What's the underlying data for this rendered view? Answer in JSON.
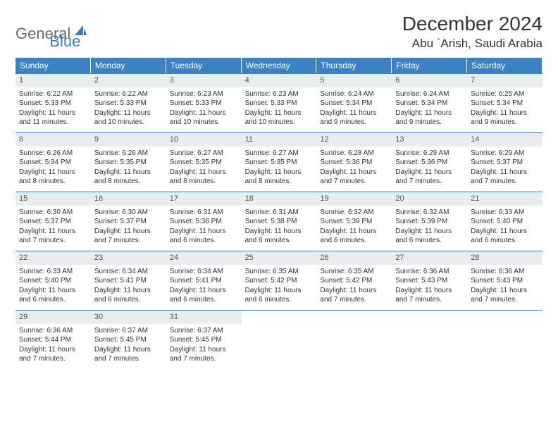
{
  "brand": {
    "part1": "General",
    "part2": "Blue"
  },
  "title": "December 2024",
  "location": "Abu `Arish, Saudi Arabia",
  "colors": {
    "header_bg": "#3b82c4",
    "header_text": "#ffffff",
    "cell_border": "#3b82c4",
    "daynum_bg": "#e9edf0",
    "text": "#333333",
    "brand_grey": "#6a6a6a",
    "brand_blue": "#3b7fbf",
    "page_bg": "#ffffff"
  },
  "typography": {
    "title_fontsize": 28,
    "location_fontsize": 17,
    "dayheader_fontsize": 12,
    "daynum_fontsize": 11,
    "body_fontsize": 10
  },
  "layout": {
    "columns": 7,
    "rows": 5,
    "cell_min_height": 84
  },
  "day_names": [
    "Sunday",
    "Monday",
    "Tuesday",
    "Wednesday",
    "Thursday",
    "Friday",
    "Saturday"
  ],
  "days": [
    {
      "n": "1",
      "sunrise": "Sunrise: 6:22 AM",
      "sunset": "Sunset: 5:33 PM",
      "d1": "Daylight: 11 hours",
      "d2": "and 11 minutes."
    },
    {
      "n": "2",
      "sunrise": "Sunrise: 6:22 AM",
      "sunset": "Sunset: 5:33 PM",
      "d1": "Daylight: 11 hours",
      "d2": "and 10 minutes."
    },
    {
      "n": "3",
      "sunrise": "Sunrise: 6:23 AM",
      "sunset": "Sunset: 5:33 PM",
      "d1": "Daylight: 11 hours",
      "d2": "and 10 minutes."
    },
    {
      "n": "4",
      "sunrise": "Sunrise: 6:23 AM",
      "sunset": "Sunset: 5:33 PM",
      "d1": "Daylight: 11 hours",
      "d2": "and 10 minutes."
    },
    {
      "n": "5",
      "sunrise": "Sunrise: 6:24 AM",
      "sunset": "Sunset: 5:34 PM",
      "d1": "Daylight: 11 hours",
      "d2": "and 9 minutes."
    },
    {
      "n": "6",
      "sunrise": "Sunrise: 6:24 AM",
      "sunset": "Sunset: 5:34 PM",
      "d1": "Daylight: 11 hours",
      "d2": "and 9 minutes."
    },
    {
      "n": "7",
      "sunrise": "Sunrise: 6:25 AM",
      "sunset": "Sunset: 5:34 PM",
      "d1": "Daylight: 11 hours",
      "d2": "and 9 minutes."
    },
    {
      "n": "8",
      "sunrise": "Sunrise: 6:26 AM",
      "sunset": "Sunset: 5:34 PM",
      "d1": "Daylight: 11 hours",
      "d2": "and 8 minutes."
    },
    {
      "n": "9",
      "sunrise": "Sunrise: 6:26 AM",
      "sunset": "Sunset: 5:35 PM",
      "d1": "Daylight: 11 hours",
      "d2": "and 8 minutes."
    },
    {
      "n": "10",
      "sunrise": "Sunrise: 6:27 AM",
      "sunset": "Sunset: 5:35 PM",
      "d1": "Daylight: 11 hours",
      "d2": "and 8 minutes."
    },
    {
      "n": "11",
      "sunrise": "Sunrise: 6:27 AM",
      "sunset": "Sunset: 5:35 PM",
      "d1": "Daylight: 11 hours",
      "d2": "and 8 minutes."
    },
    {
      "n": "12",
      "sunrise": "Sunrise: 6:28 AM",
      "sunset": "Sunset: 5:36 PM",
      "d1": "Daylight: 11 hours",
      "d2": "and 7 minutes."
    },
    {
      "n": "13",
      "sunrise": "Sunrise: 6:29 AM",
      "sunset": "Sunset: 5:36 PM",
      "d1": "Daylight: 11 hours",
      "d2": "and 7 minutes."
    },
    {
      "n": "14",
      "sunrise": "Sunrise: 6:29 AM",
      "sunset": "Sunset: 5:37 PM",
      "d1": "Daylight: 11 hours",
      "d2": "and 7 minutes."
    },
    {
      "n": "15",
      "sunrise": "Sunrise: 6:30 AM",
      "sunset": "Sunset: 5:37 PM",
      "d1": "Daylight: 11 hours",
      "d2": "and 7 minutes."
    },
    {
      "n": "16",
      "sunrise": "Sunrise: 6:30 AM",
      "sunset": "Sunset: 5:37 PM",
      "d1": "Daylight: 11 hours",
      "d2": "and 7 minutes."
    },
    {
      "n": "17",
      "sunrise": "Sunrise: 6:31 AM",
      "sunset": "Sunset: 5:38 PM",
      "d1": "Daylight: 11 hours",
      "d2": "and 6 minutes."
    },
    {
      "n": "18",
      "sunrise": "Sunrise: 6:31 AM",
      "sunset": "Sunset: 5:38 PM",
      "d1": "Daylight: 11 hours",
      "d2": "and 6 minutes."
    },
    {
      "n": "19",
      "sunrise": "Sunrise: 6:32 AM",
      "sunset": "Sunset: 5:39 PM",
      "d1": "Daylight: 11 hours",
      "d2": "and 6 minutes."
    },
    {
      "n": "20",
      "sunrise": "Sunrise: 6:32 AM",
      "sunset": "Sunset: 5:39 PM",
      "d1": "Daylight: 11 hours",
      "d2": "and 6 minutes."
    },
    {
      "n": "21",
      "sunrise": "Sunrise: 6:33 AM",
      "sunset": "Sunset: 5:40 PM",
      "d1": "Daylight: 11 hours",
      "d2": "and 6 minutes."
    },
    {
      "n": "22",
      "sunrise": "Sunrise: 6:33 AM",
      "sunset": "Sunset: 5:40 PM",
      "d1": "Daylight: 11 hours",
      "d2": "and 6 minutes."
    },
    {
      "n": "23",
      "sunrise": "Sunrise: 6:34 AM",
      "sunset": "Sunset: 5:41 PM",
      "d1": "Daylight: 11 hours",
      "d2": "and 6 minutes."
    },
    {
      "n": "24",
      "sunrise": "Sunrise: 6:34 AM",
      "sunset": "Sunset: 5:41 PM",
      "d1": "Daylight: 11 hours",
      "d2": "and 6 minutes."
    },
    {
      "n": "25",
      "sunrise": "Sunrise: 6:35 AM",
      "sunset": "Sunset: 5:42 PM",
      "d1": "Daylight: 11 hours",
      "d2": "and 6 minutes."
    },
    {
      "n": "26",
      "sunrise": "Sunrise: 6:35 AM",
      "sunset": "Sunset: 5:42 PM",
      "d1": "Daylight: 11 hours",
      "d2": "and 7 minutes."
    },
    {
      "n": "27",
      "sunrise": "Sunrise: 6:36 AM",
      "sunset": "Sunset: 5:43 PM",
      "d1": "Daylight: 11 hours",
      "d2": "and 7 minutes."
    },
    {
      "n": "28",
      "sunrise": "Sunrise: 6:36 AM",
      "sunset": "Sunset: 5:43 PM",
      "d1": "Daylight: 11 hours",
      "d2": "and 7 minutes."
    },
    {
      "n": "29",
      "sunrise": "Sunrise: 6:36 AM",
      "sunset": "Sunset: 5:44 PM",
      "d1": "Daylight: 11 hours",
      "d2": "and 7 minutes."
    },
    {
      "n": "30",
      "sunrise": "Sunrise: 6:37 AM",
      "sunset": "Sunset: 5:45 PM",
      "d1": "Daylight: 11 hours",
      "d2": "and 7 minutes."
    },
    {
      "n": "31",
      "sunrise": "Sunrise: 6:37 AM",
      "sunset": "Sunset: 5:45 PM",
      "d1": "Daylight: 11 hours",
      "d2": "and 7 minutes."
    }
  ]
}
